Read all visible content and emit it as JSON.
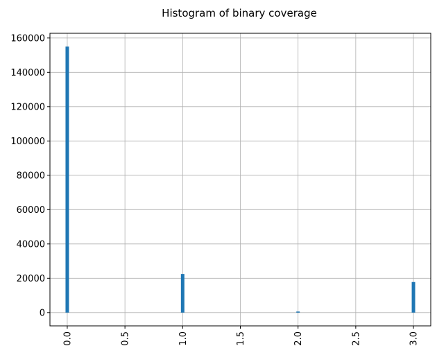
{
  "chart_data": {
    "type": "bar",
    "title": "Histogram of binary coverage",
    "xlabel": "",
    "ylabel": "",
    "xlim": [
      -0.15,
      3.15
    ],
    "ylim": [
      -7750,
      162750
    ],
    "x_ticks": [
      0.0,
      0.5,
      1.0,
      1.5,
      2.0,
      2.5,
      3.0
    ],
    "x_tick_labels": [
      "0.0",
      "0.5",
      "1.0",
      "1.5",
      "2.0",
      "2.5",
      "3.0"
    ],
    "y_ticks": [
      0,
      20000,
      40000,
      60000,
      80000,
      100000,
      120000,
      140000,
      160000
    ],
    "y_tick_labels": [
      "0",
      "20000",
      "40000",
      "60000",
      "80000",
      "100000",
      "120000",
      "140000",
      "160000"
    ],
    "bin_width": 0.03,
    "bins": [
      {
        "x": 0.0,
        "value": 155000
      },
      {
        "x": 1.0,
        "value": 22500
      },
      {
        "x": 2.0,
        "value": 600
      },
      {
        "x": 3.0,
        "value": 17800
      }
    ],
    "bar_color": "#1f77b4",
    "grid": true,
    "legend": "none"
  }
}
